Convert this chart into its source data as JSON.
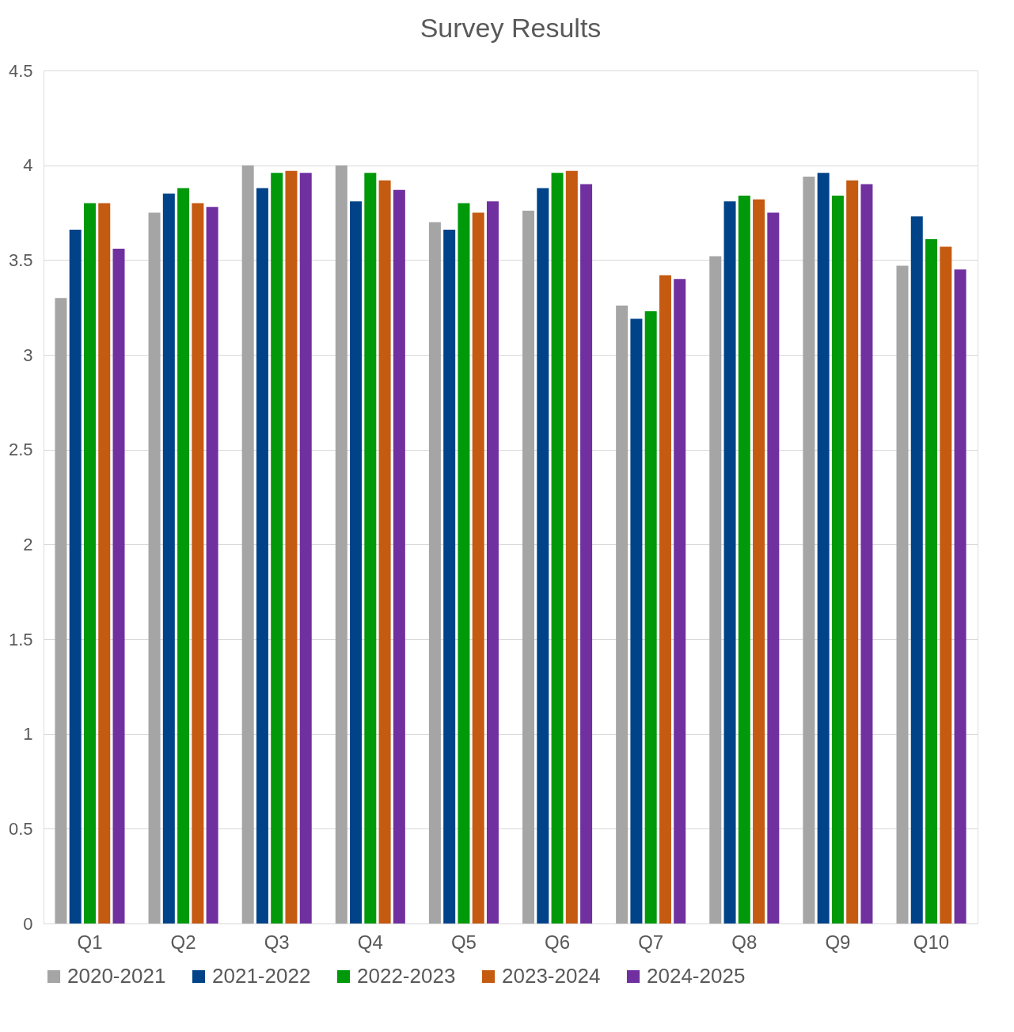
{
  "chart_data": {
    "type": "bar",
    "title": "Survey Results",
    "categories": [
      "Q1",
      "Q2",
      "Q3",
      "Q4",
      "Q5",
      "Q6",
      "Q7",
      "Q8",
      "Q9",
      "Q10"
    ],
    "series": [
      {
        "name": "2020-2021",
        "color": "#a5a5a5",
        "values": [
          3.3,
          3.75,
          4.0,
          4.0,
          3.7,
          3.76,
          3.26,
          3.52,
          3.94,
          3.47
        ]
      },
      {
        "name": "2021-2022",
        "color": "#004389",
        "values": [
          3.66,
          3.85,
          3.88,
          3.81,
          3.66,
          3.88,
          3.19,
          3.81,
          3.96,
          3.73
        ]
      },
      {
        "name": "2022-2023",
        "color": "#00990a",
        "values": [
          3.8,
          3.88,
          3.96,
          3.96,
          3.8,
          3.96,
          3.23,
          3.84,
          3.84,
          3.61
        ]
      },
      {
        "name": "2023-2024",
        "color": "#c55a11",
        "values": [
          3.8,
          3.8,
          3.97,
          3.92,
          3.75,
          3.97,
          3.42,
          3.82,
          3.92,
          3.57
        ]
      },
      {
        "name": "2024-2025",
        "color": "#7030a0",
        "values": [
          3.56,
          3.78,
          3.96,
          3.87,
          3.81,
          3.9,
          3.4,
          3.75,
          3.9,
          3.45
        ]
      }
    ],
    "ylim": [
      0,
      4.5
    ],
    "yticks": [
      0,
      0.5,
      1,
      1.5,
      2,
      2.5,
      3,
      3.5,
      4,
      4.5
    ],
    "grid": "y",
    "legend": "bottom"
  }
}
